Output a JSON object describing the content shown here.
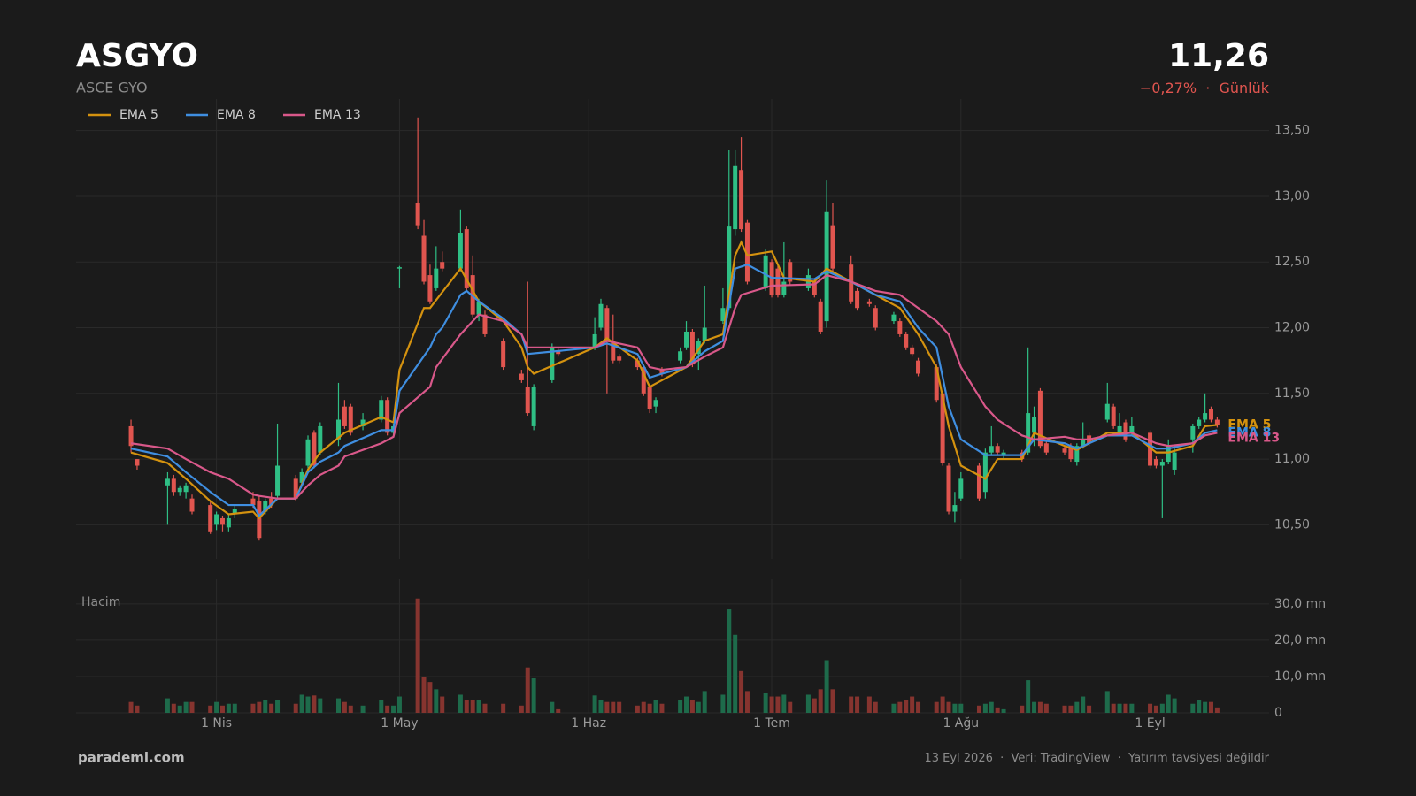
{
  "header": {
    "title": "ASGYO",
    "subtitle": "ASCE GYO",
    "price_label": "11,26",
    "change": "−0,27%",
    "period": "Günlük"
  },
  "footer": {
    "brand": "parademi.com",
    "date": "13 Eyl 2026",
    "source": "Veri: TradingView",
    "disclaimer": "Yatırım tavsiyesi değildir"
  },
  "chart_data": {
    "type": "candlestick",
    "last_price": 11.26,
    "up_color": "#2fbf85",
    "down_color": "#e0554f",
    "volume_up_color": "#1e6b4b",
    "volume_down_color": "#86342f",
    "grid": true,
    "xlim": [
      68,
      263.5
    ],
    "xticks": [
      {
        "value": 91,
        "label": "1 Nis"
      },
      {
        "value": 121,
        "label": "1 May"
      },
      {
        "value": 152,
        "label": "1 Haz"
      },
      {
        "value": 182,
        "label": "1 Tem"
      },
      {
        "value": 213,
        "label": "1 Ağu"
      },
      {
        "value": 244,
        "label": "1 Eyl"
      }
    ],
    "ylim": [
      10.24,
      13.74
    ],
    "yticks": [
      {
        "value": 10.5,
        "label": "10,50"
      },
      {
        "value": 11,
        "label": "11,00"
      },
      {
        "value": 11.5,
        "label": "11,50"
      },
      {
        "value": 12,
        "label": "12,00"
      },
      {
        "value": 12.5,
        "label": "12,50"
      },
      {
        "value": 13,
        "label": "13,00"
      },
      {
        "value": 13.5,
        "label": "13,50"
      }
    ],
    "volume_label": "Hacim",
    "y2lim": [
      0,
      36.8
    ],
    "y2ticks": [
      0,
      {
        "value": 10,
        "label": "10,0 mn"
      },
      {
        "value": 20,
        "label": "20,0 mn"
      },
      {
        "value": 30,
        "label": "30,0 mn"
      }
    ],
    "x": [
      77,
      78,
      83,
      84,
      85,
      86,
      87,
      90,
      91,
      92,
      93,
      94,
      97,
      98,
      99,
      100,
      101,
      104,
      105,
      106,
      107,
      108,
      111,
      112,
      113,
      115,
      118,
      119,
      120,
      121,
      124,
      125,
      126,
      127,
      128,
      131,
      132,
      133,
      134,
      135,
      138,
      141,
      142,
      143,
      146,
      147,
      153,
      154,
      155,
      156,
      157,
      160,
      161,
      162,
      163,
      164,
      167,
      168,
      169,
      170,
      171,
      174,
      175,
      176,
      177,
      178,
      181,
      182,
      183,
      184,
      185,
      188,
      189,
      190,
      191,
      192,
      195,
      196,
      198,
      199,
      202,
      203,
      204,
      205,
      206,
      209,
      210,
      211,
      212,
      213,
      216,
      217,
      218,
      219,
      220,
      223,
      224,
      225,
      226,
      227,
      230,
      231,
      232,
      233,
      234,
      237,
      238,
      239,
      240,
      241,
      244,
      245,
      246,
      247,
      248,
      251,
      252,
      253,
      254,
      255
    ],
    "ohlc": [
      [
        11.25,
        11.3,
        11.05,
        11.1
      ],
      [
        11.0,
        11.0,
        10.92,
        10.95
      ],
      [
        10.8,
        10.9,
        10.5,
        10.85
      ],
      [
        10.85,
        10.88,
        10.72,
        10.75
      ],
      [
        10.75,
        10.8,
        10.72,
        10.78
      ],
      [
        10.75,
        10.82,
        10.7,
        10.8
      ],
      [
        10.7,
        10.73,
        10.58,
        10.6
      ],
      [
        10.65,
        10.68,
        10.43,
        10.45
      ],
      [
        10.5,
        10.6,
        10.46,
        10.58
      ],
      [
        10.55,
        10.57,
        10.45,
        10.5
      ],
      [
        10.48,
        10.58,
        10.45,
        10.55
      ],
      [
        10.58,
        10.65,
        10.55,
        10.62
      ],
      [
        10.7,
        10.75,
        10.63,
        10.65
      ],
      [
        10.68,
        10.72,
        10.38,
        10.4
      ],
      [
        10.6,
        10.7,
        10.58,
        10.68
      ],
      [
        10.7,
        10.75,
        10.63,
        10.65
      ],
      [
        10.72,
        11.27,
        10.7,
        10.95
      ],
      [
        10.85,
        10.88,
        10.68,
        10.7
      ],
      [
        10.82,
        10.93,
        10.8,
        10.9
      ],
      [
        10.95,
        11.18,
        10.93,
        11.15
      ],
      [
        11.2,
        11.22,
        10.93,
        10.95
      ],
      [
        11.05,
        11.28,
        11.03,
        11.25
      ],
      [
        11.15,
        11.58,
        11.1,
        11.3
      ],
      [
        11.4,
        11.45,
        11.23,
        11.25
      ],
      [
        11.4,
        11.42,
        11.18,
        11.2
      ],
      [
        11.25,
        11.35,
        11.22,
        11.3
      ],
      [
        11.3,
        11.48,
        11.28,
        11.45
      ],
      [
        11.45,
        11.47,
        11.18,
        11.2
      ],
      [
        11.2,
        11.27,
        11.18,
        11.25
      ],
      [
        12.45,
        12.47,
        12.3,
        12.46
      ],
      [
        12.95,
        13.6,
        12.75,
        12.78
      ],
      [
        12.7,
        12.82,
        12.33,
        12.35
      ],
      [
        12.4,
        12.48,
        12.18,
        12.2
      ],
      [
        12.3,
        12.62,
        12.28,
        12.45
      ],
      [
        12.5,
        12.58,
        12.43,
        12.45
      ],
      [
        12.45,
        12.9,
        12.43,
        12.72
      ],
      [
        12.75,
        12.77,
        12.28,
        12.3
      ],
      [
        12.4,
        12.55,
        12.08,
        12.1
      ],
      [
        12.1,
        12.22,
        12.05,
        12.2
      ],
      [
        12.1,
        12.13,
        11.93,
        11.95
      ],
      [
        11.9,
        11.92,
        11.68,
        11.7
      ],
      [
        11.65,
        11.68,
        11.58,
        11.6
      ],
      [
        11.55,
        12.35,
        11.33,
        11.35
      ],
      [
        11.25,
        11.57,
        11.22,
        11.55
      ],
      [
        11.6,
        11.88,
        11.58,
        11.85
      ],
      [
        11.82,
        11.84,
        11.78,
        11.8
      ],
      [
        11.85,
        12.08,
        11.83,
        11.95
      ],
      [
        12.0,
        12.22,
        11.98,
        12.18
      ],
      [
        12.15,
        12.17,
        11.5,
        11.9
      ],
      [
        11.9,
        12.1,
        11.73,
        11.75
      ],
      [
        11.78,
        11.8,
        11.73,
        11.75
      ],
      [
        11.75,
        11.77,
        11.68,
        11.7
      ],
      [
        11.7,
        11.72,
        11.48,
        11.5
      ],
      [
        11.55,
        11.57,
        11.35,
        11.38
      ],
      [
        11.4,
        11.47,
        11.35,
        11.45
      ],
      [
        11.68,
        11.7,
        11.63,
        11.65
      ],
      [
        11.75,
        11.85,
        11.73,
        11.82
      ],
      [
        11.85,
        12.05,
        11.83,
        11.97
      ],
      [
        11.97,
        11.99,
        11.7,
        11.72
      ],
      [
        11.8,
        11.92,
        11.68,
        11.9
      ],
      [
        11.9,
        12.32,
        11.88,
        12.0
      ],
      [
        12.05,
        12.3,
        12.03,
        12.15
      ],
      [
        12.15,
        13.35,
        12.13,
        12.77
      ],
      [
        12.75,
        13.35,
        12.7,
        13.23
      ],
      [
        13.2,
        13.45,
        12.73,
        12.75
      ],
      [
        12.8,
        12.82,
        12.33,
        12.35
      ],
      [
        12.3,
        12.6,
        12.28,
        12.55
      ],
      [
        12.5,
        12.52,
        12.23,
        12.25
      ],
      [
        12.45,
        12.47,
        12.23,
        12.25
      ],
      [
        12.25,
        12.65,
        12.23,
        12.35
      ],
      [
        12.5,
        12.52,
        12.33,
        12.35
      ],
      [
        12.3,
        12.45,
        12.28,
        12.4
      ],
      [
        12.35,
        12.37,
        12.23,
        12.25
      ],
      [
        12.2,
        12.22,
        11.95,
        11.97
      ],
      [
        12.05,
        13.12,
        12.0,
        12.88
      ],
      [
        12.78,
        12.95,
        12.43,
        12.45
      ],
      [
        12.48,
        12.55,
        12.18,
        12.2
      ],
      [
        12.28,
        12.3,
        12.13,
        12.15
      ],
      [
        12.2,
        12.22,
        12.16,
        12.18
      ],
      [
        12.15,
        12.17,
        11.98,
        12.0
      ],
      [
        12.05,
        12.12,
        12.03,
        12.1
      ],
      [
        12.05,
        12.07,
        11.93,
        11.95
      ],
      [
        11.95,
        11.97,
        11.83,
        11.85
      ],
      [
        11.85,
        11.87,
        11.78,
        11.8
      ],
      [
        11.75,
        11.77,
        11.63,
        11.65
      ],
      [
        11.7,
        11.72,
        11.43,
        11.45
      ],
      [
        11.5,
        11.52,
        10.95,
        10.97
      ],
      [
        10.95,
        10.97,
        10.58,
        10.6
      ],
      [
        10.6,
        10.75,
        10.52,
        10.65
      ],
      [
        10.7,
        10.9,
        10.68,
        10.85
      ],
      [
        10.95,
        10.97,
        10.68,
        10.7
      ],
      [
        10.75,
        11.08,
        10.7,
        11.05
      ],
      [
        11.05,
        11.25,
        11.03,
        11.1
      ],
      [
        11.1,
        11.12,
        11.03,
        11.05
      ],
      [
        11.03,
        11.07,
        11.0,
        11.05
      ],
      [
        11.05,
        11.07,
        10.98,
        11.0
      ],
      [
        11.05,
        11.85,
        11.03,
        11.35
      ],
      [
        11.2,
        11.4,
        11.1,
        11.32
      ],
      [
        11.52,
        11.54,
        11.08,
        11.1
      ],
      [
        11.12,
        11.14,
        11.03,
        11.05
      ],
      [
        11.08,
        11.1,
        11.03,
        11.05
      ],
      [
        11.1,
        11.12,
        10.98,
        11.0
      ],
      [
        10.98,
        11.12,
        10.95,
        11.1
      ],
      [
        11.1,
        11.28,
        11.08,
        11.15
      ],
      [
        11.18,
        11.2,
        11.1,
        11.12
      ],
      [
        11.3,
        11.58,
        11.28,
        11.42
      ],
      [
        11.4,
        11.42,
        11.23,
        11.25
      ],
      [
        11.2,
        11.35,
        11.18,
        11.25
      ],
      [
        11.28,
        11.3,
        11.13,
        11.15
      ],
      [
        11.2,
        11.32,
        11.18,
        11.25
      ],
      [
        11.2,
        11.22,
        10.93,
        10.95
      ],
      [
        11.0,
        11.02,
        10.93,
        10.95
      ],
      [
        10.95,
        11.0,
        10.55,
        10.98
      ],
      [
        10.98,
        11.15,
        10.96,
        11.1
      ],
      [
        10.92,
        11.08,
        10.88,
        11.05
      ],
      [
        11.15,
        11.27,
        11.05,
        11.25
      ],
      [
        11.25,
        11.32,
        11.23,
        11.3
      ],
      [
        11.3,
        11.5,
        11.28,
        11.35
      ],
      [
        11.38,
        11.4,
        11.28,
        11.3
      ],
      [
        11.3,
        11.32,
        11.24,
        11.26
      ]
    ],
    "volume": [
      3,
      2,
      4,
      2.5,
      2,
      3,
      3,
      2,
      3,
      2,
      2.5,
      2.5,
      2.5,
      3,
      3.5,
      2.5,
      3.5,
      2.5,
      5,
      4.5,
      4.8,
      4,
      4,
      3,
      2,
      2,
      3.5,
      2,
      2,
      4.5,
      31.5,
      10,
      8.5,
      6.5,
      4.5,
      5,
      3.5,
      3.5,
      3.5,
      2.5,
      2.5,
      2,
      12.5,
      9.5,
      3,
      1,
      4.8,
      3.5,
      3,
      3,
      3,
      2,
      3,
      2.5,
      3.5,
      2.5,
      3.5,
      4.5,
      3.5,
      3,
      6,
      5,
      28.5,
      21.5,
      11.5,
      6,
      5.5,
      4.5,
      4.5,
      5,
      3,
      5,
      4,
      6.5,
      14.5,
      6.5,
      4.5,
      4.5,
      4.5,
      3,
      2.5,
      3,
      3.5,
      4.5,
      3,
      3,
      4.5,
      3,
      2.5,
      2.5,
      2,
      2.5,
      3,
      1.5,
      1,
      2,
      9,
      3,
      3,
      2.5,
      2,
      2,
      3,
      4.5,
      2,
      6,
      2.5,
      2.5,
      2.5,
      2.5,
      2.5,
      2,
      2.5,
      5,
      4,
      2.5,
      3.5,
      3,
      3,
      1.5
    ],
    "series": [
      {
        "name": "EMA 5",
        "color": "#d4920f",
        "x": [
          77,
          83,
          86,
          90,
          93,
          97,
          98,
          101,
          104,
          106,
          108,
          112,
          118,
          120,
          121,
          125,
          126,
          131,
          134,
          138,
          141,
          142,
          143,
          153,
          155,
          160,
          162,
          164,
          168,
          171,
          174,
          176,
          177,
          178,
          182,
          184,
          189,
          191,
          195,
          199,
          203,
          206,
          209,
          211,
          213,
          217,
          219,
          223,
          225,
          230,
          232,
          234,
          237,
          241,
          245,
          247,
          251,
          253,
          255
        ],
        "values": [
          11.05,
          10.97,
          10.85,
          10.68,
          10.58,
          10.6,
          10.55,
          10.7,
          10.7,
          10.92,
          11.05,
          11.2,
          11.32,
          11.28,
          11.68,
          12.15,
          12.15,
          12.45,
          12.2,
          12.05,
          11.85,
          11.7,
          11.65,
          11.85,
          11.92,
          11.75,
          11.55,
          11.6,
          11.7,
          11.9,
          11.95,
          12.55,
          12.65,
          12.55,
          12.58,
          12.38,
          12.35,
          12.45,
          12.35,
          12.25,
          12.15,
          11.95,
          11.7,
          11.25,
          10.95,
          10.85,
          11.0,
          11.0,
          11.2,
          11.1,
          11.07,
          11.12,
          11.2,
          11.2,
          11.05,
          11.05,
          11.1,
          11.25,
          11.26
        ]
      },
      {
        "name": "EMA 8",
        "color": "#3f8ee0",
        "x": [
          77,
          83,
          86,
          90,
          93,
          97,
          98,
          101,
          104,
          106,
          108,
          111,
          112,
          118,
          120,
          121,
          126,
          127,
          128,
          131,
          132,
          134,
          138,
          141,
          142,
          153,
          155,
          160,
          162,
          164,
          168,
          171,
          174,
          176,
          178,
          182,
          189,
          191,
          195,
          199,
          203,
          206,
          209,
          211,
          213,
          217,
          223,
          225,
          230,
          232,
          234,
          237,
          241,
          245,
          247,
          251,
          253,
          255
        ],
        "values": [
          11.08,
          11.02,
          10.9,
          10.75,
          10.65,
          10.65,
          10.57,
          10.7,
          10.7,
          10.9,
          10.98,
          11.05,
          11.1,
          11.22,
          11.22,
          11.52,
          11.85,
          11.95,
          12.0,
          12.25,
          12.28,
          12.2,
          12.07,
          11.95,
          11.8,
          11.85,
          11.88,
          11.8,
          11.62,
          11.65,
          11.7,
          11.82,
          11.9,
          12.45,
          12.48,
          12.38,
          12.37,
          12.43,
          12.35,
          12.25,
          12.2,
          12.0,
          11.85,
          11.4,
          11.15,
          11.03,
          11.03,
          11.15,
          11.12,
          11.08,
          11.12,
          11.18,
          11.18,
          11.08,
          11.08,
          11.12,
          11.2,
          11.22
        ]
      },
      {
        "name": "EMA 13",
        "color": "#d9588a",
        "x": [
          77,
          83,
          86,
          90,
          93,
          97,
          98,
          101,
          104,
          106,
          108,
          111,
          112,
          118,
          120,
          121,
          126,
          127,
          131,
          134,
          138,
          141,
          142,
          153,
          155,
          160,
          162,
          164,
          168,
          171,
          174,
          176,
          177,
          182,
          189,
          191,
          195,
          199,
          203,
          206,
          209,
          211,
          213,
          217,
          219,
          223,
          225,
          230,
          232,
          234,
          237,
          241,
          245,
          247,
          251,
          253,
          255
        ],
        "values": [
          11.12,
          11.08,
          11.0,
          10.9,
          10.85,
          10.73,
          10.72,
          10.7,
          10.7,
          10.8,
          10.88,
          10.95,
          11.02,
          11.12,
          11.17,
          11.35,
          11.55,
          11.7,
          11.95,
          12.1,
          12.05,
          11.95,
          11.85,
          11.85,
          11.9,
          11.85,
          11.7,
          11.68,
          11.7,
          11.78,
          11.85,
          12.15,
          12.25,
          12.32,
          12.33,
          12.4,
          12.35,
          12.28,
          12.25,
          12.15,
          12.05,
          11.95,
          11.7,
          11.4,
          11.3,
          11.18,
          11.15,
          11.17,
          11.15,
          11.15,
          11.18,
          11.2,
          11.12,
          11.1,
          11.12,
          11.18,
          11.2
        ]
      }
    ]
  }
}
